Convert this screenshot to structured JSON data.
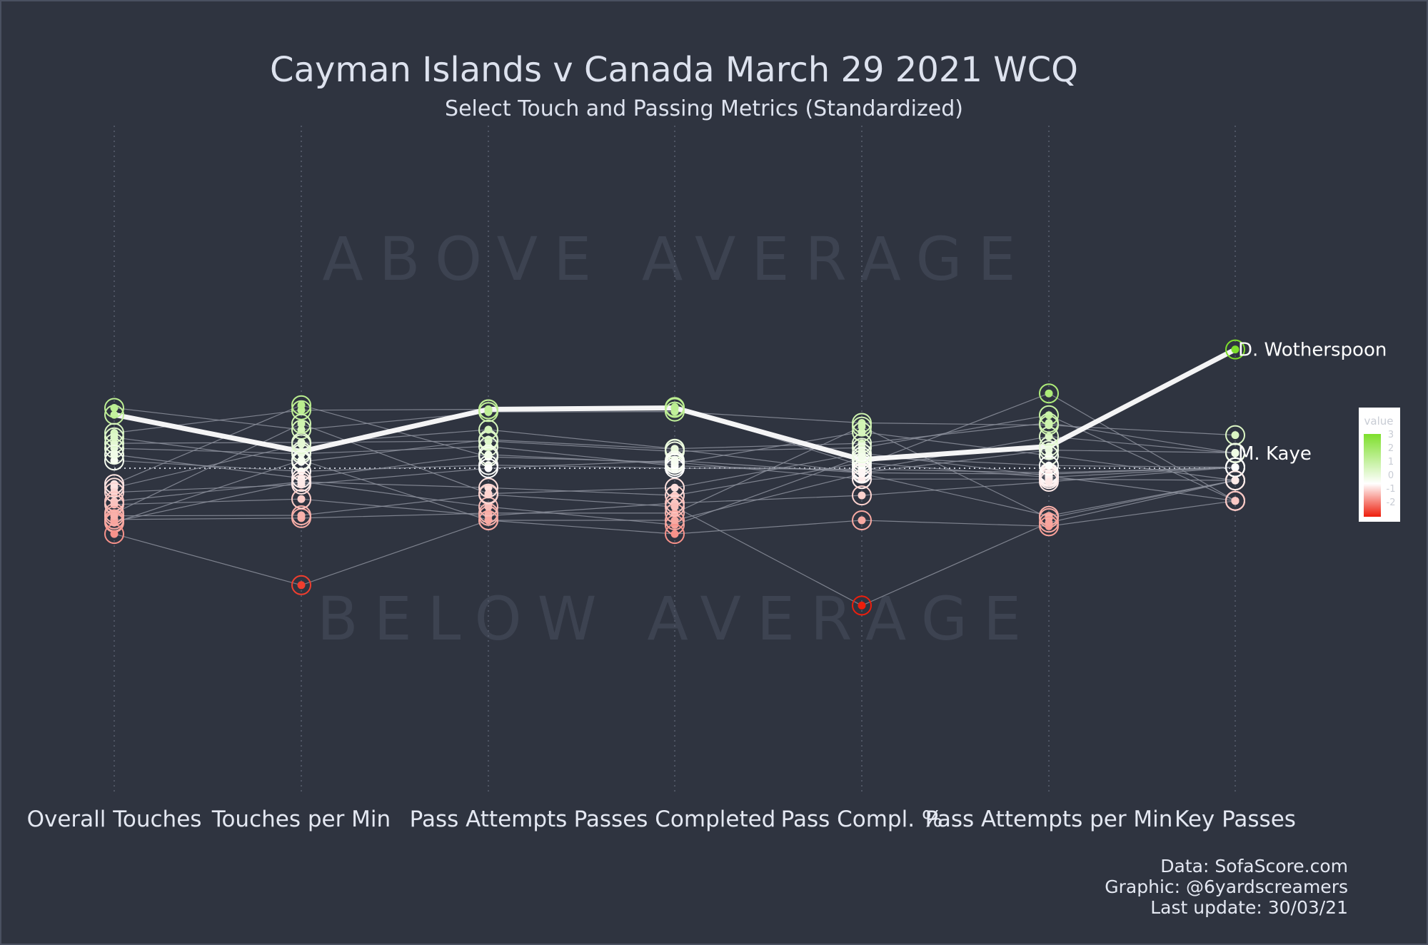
{
  "title": "Cayman Islands v Canada March 29 2021 WCQ",
  "subtitle": "Select Touch and Passing Metrics (Standardized)",
  "region_labels": {
    "above": "ABOVE AVERAGE",
    "below": "BELOW AVERAGE"
  },
  "credits": [
    "Data: SofaScore.com",
    "Graphic: @6yardscreamers",
    "Last update: 30/03/21"
  ],
  "legend": {
    "title": "value",
    "ticks": [
      "3",
      "2",
      "1",
      "0",
      "-1",
      "-2"
    ],
    "colors": {
      "low": "#ee1e0c",
      "mid": "#ffffff",
      "high": "#7edf2c"
    }
  },
  "colors": {
    "background": "#2f3440",
    "text": "#dde2ee",
    "highlight": "#ffffff",
    "line": "#8c919c"
  },
  "chart_data": {
    "type": "parallel-coordinates",
    "title": "Cayman Islands v Canada March 29 2021 WCQ",
    "subtitle": "Select Touch and Passing Metrics (Standardized)",
    "categories": [
      "Overall Touches",
      "Touches per Min",
      "Pass Attempts",
      "Passes Completed",
      "Pass Compl. %",
      "Pass Attempts per Min",
      "Key Passes"
    ],
    "ylim": [
      -2.5,
      2.6
    ],
    "series": [
      {
        "name": "D. Wotherspoon",
        "highlight": true,
        "label": "D. Wotherspoon",
        "label_at": "Key Passes",
        "values": [
          1.18,
          0.37,
          1.3,
          1.33,
          0.19,
          0.48,
          2.62
        ]
      },
      {
        "name": "M. Kaye",
        "highlight": false,
        "label": "M. Kaye",
        "label_at": "Key Passes",
        "values": [
          0.44,
          0.32,
          0.48,
          0.05,
          -0.05,
          0.7,
          0.33
        ]
      },
      {
        "name": "",
        "values": [
          1.33,
          0.85,
          1.24,
          1.25,
          1.0,
          0.95,
          0.73
        ]
      },
      {
        "name": "",
        "values": [
          0.78,
          1.28,
          1.3,
          1.35,
          0.06,
          1.65,
          -0.72
        ]
      },
      {
        "name": "",
        "values": [
          0.55,
          0.57,
          0.6,
          0.37,
          0.45,
          1.17,
          -0.72
        ]
      },
      {
        "name": "",
        "values": [
          0.68,
          0.14,
          0.63,
          0.42,
          -0.1,
          0.4,
          0.34
        ]
      },
      {
        "name": "",
        "values": [
          0.17,
          -0.07,
          0.07,
          0.0,
          -0.02,
          -0.1,
          0.02
        ]
      },
      {
        "name": "",
        "values": [
          -0.43,
          0.53,
          0.85,
          0.43,
          0.55,
          1.0,
          0.33
        ]
      },
      {
        "name": "",
        "values": [
          0.3,
          -0.22,
          0.3,
          0.1,
          0.8,
          0.28,
          -0.27
        ]
      },
      {
        "name": "",
        "values": [
          -0.35,
          1.39,
          0.25,
          0.13,
          -0.24,
          -0.24,
          -0.27
        ]
      },
      {
        "name": "",
        "values": [
          -0.53,
          -0.36,
          0.0,
          0.17,
          -0.1,
          -0.13,
          0.02
        ]
      },
      {
        "name": "",
        "values": [
          -0.73,
          -0.3,
          -0.43,
          -0.6,
          0.12,
          -0.2,
          0.02
        ]
      },
      {
        "name": "",
        "values": [
          -0.99,
          0.98,
          -0.56,
          -0.43,
          0.33,
          -0.17,
          -0.72
        ]
      },
      {
        "name": "",
        "values": [
          -1.13,
          -1.1,
          -0.99,
          -0.99,
          0.92,
          -1.1,
          -0.27
        ]
      },
      {
        "name": "",
        "values": [
          -0.8,
          -0.68,
          -1.05,
          -0.77,
          -0.6,
          -0.3,
          0.02
        ]
      },
      {
        "name": "",
        "values": [
          -1.18,
          -0.3,
          -0.85,
          -1.25,
          0.25,
          0.06,
          0.02
        ]
      },
      {
        "name": "",
        "values": [
          -1.2,
          0.18,
          -1.15,
          -1.15,
          -0.12,
          -1.05,
          -0.27
        ]
      },
      {
        "name": "",
        "values": [
          -1.45,
          -2.58,
          -1.15,
          -1.45,
          -1.15,
          -1.28,
          -0.72
        ]
      },
      {
        "name": "",
        "values": [
          -1.05,
          -1.04,
          -0.58,
          -0.85,
          -3.03,
          -1.2,
          -0.27
        ]
      }
    ]
  }
}
